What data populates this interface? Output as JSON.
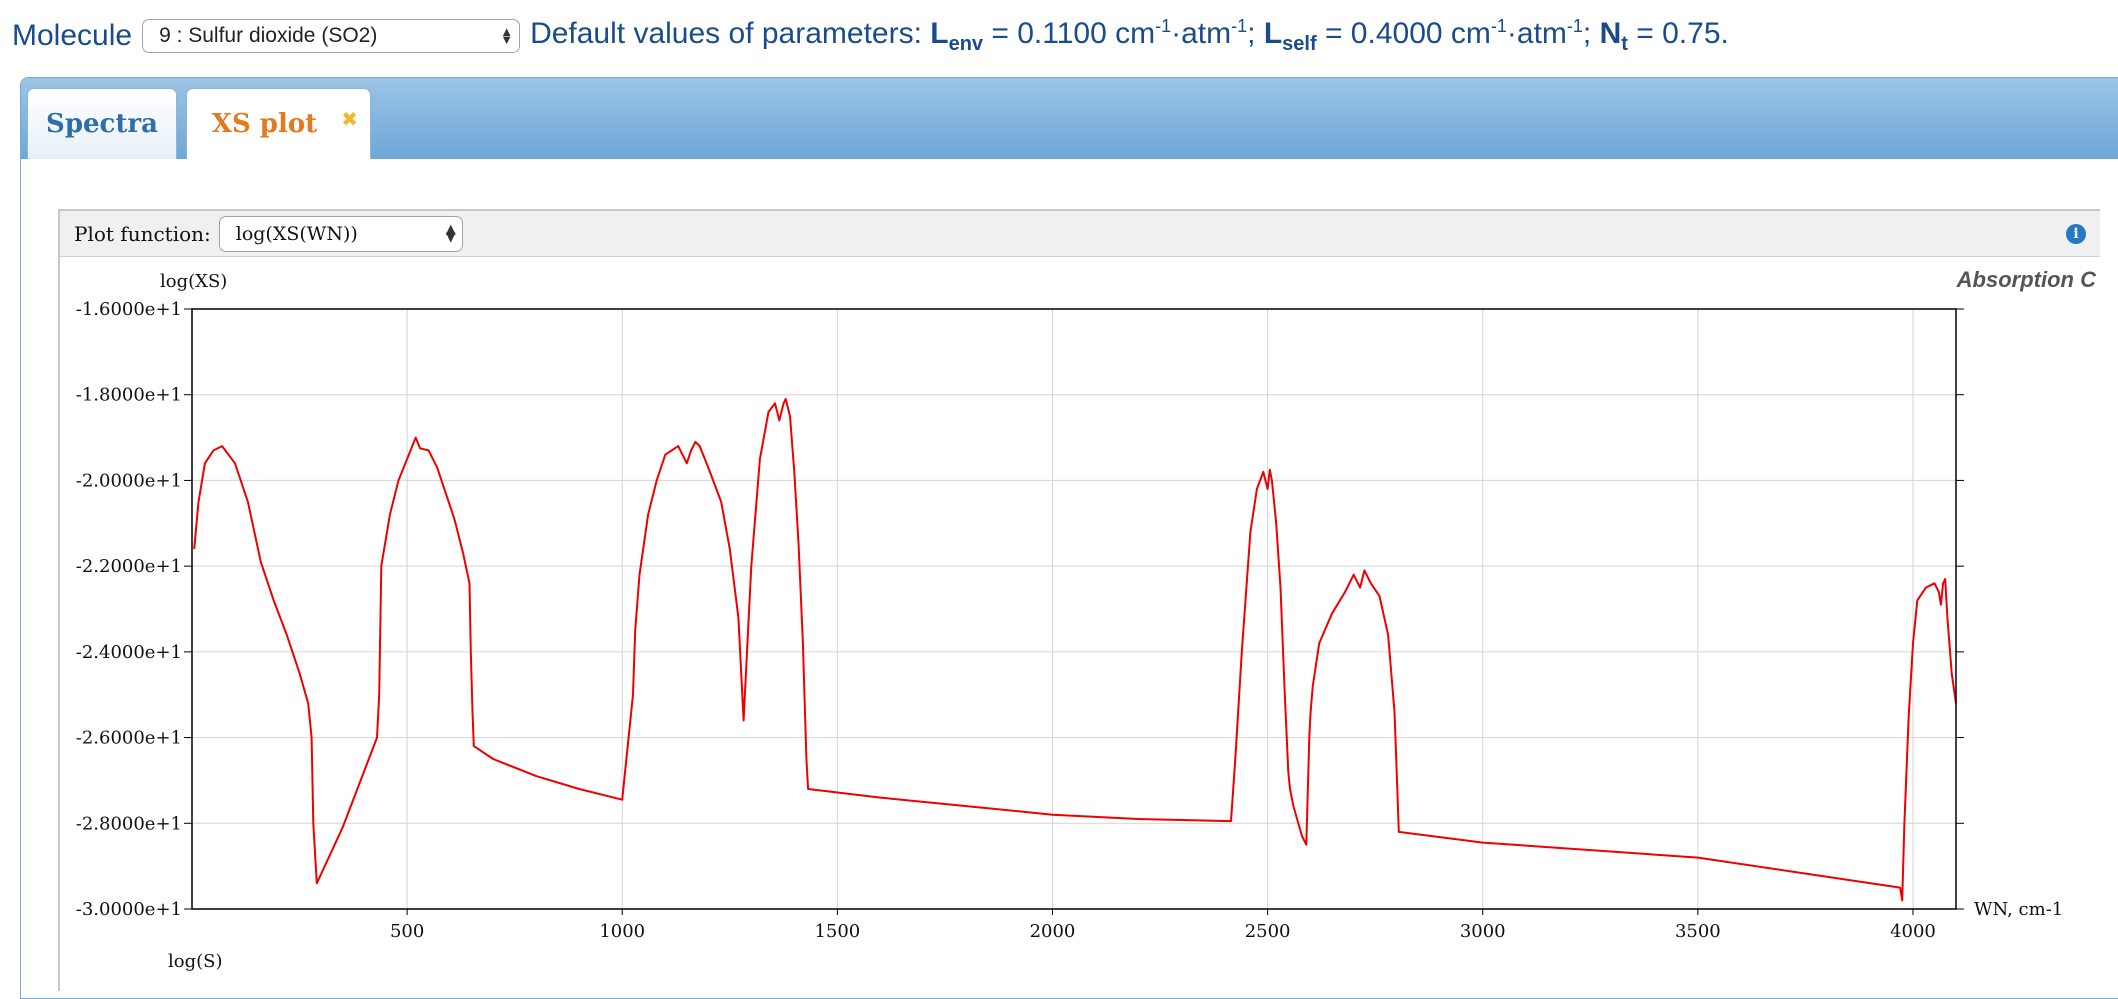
{
  "molecule": {
    "label": "Molecule",
    "selected": "9 : Sulfur dioxide (SO2)"
  },
  "params": {
    "prefix": "Default values of parameters: ",
    "l_env_symbol": "L",
    "l_env_sub": "env",
    "l_env_value": " = 0.1100 cm",
    "l_env_exp1": "-1",
    "l_env_unit2": "·atm",
    "l_env_exp2": "-1",
    "l_env_end": "; ",
    "l_self_symbol": "L",
    "l_self_sub": "self",
    "l_self_value": " = 0.4000 cm",
    "l_self_exp1": "-1",
    "l_self_unit2": "·atm",
    "l_self_exp2": "-1",
    "l_self_end": "; ",
    "nt_symbol": "N",
    "nt_sub": "t",
    "nt_value": " = 0.75."
  },
  "tabs": {
    "spectra": "Spectra",
    "xs_plot": "XS plot",
    "close_glyph": "✖"
  },
  "plot_toolbar": {
    "label": "Plot function:",
    "selected": "log(XS(WN))",
    "info_glyph": "i"
  },
  "chart_data": {
    "type": "line",
    "title": "Absorption C",
    "ylabel": "log(XS)",
    "xlabel": "WN, cm-1",
    "next_panel_label": "log(S)",
    "xlim": [
      0,
      4100
    ],
    "ylim": [
      -30,
      -16
    ],
    "x_ticks": [
      500,
      1000,
      1500,
      2000,
      2500,
      3000,
      3500,
      4000
    ],
    "x_tick_labels": [
      "500",
      "1000",
      "1500",
      "2000",
      "2500",
      "3000",
      "3500",
      "4000"
    ],
    "y_ticks": [
      -16,
      -18,
      -20,
      -22,
      -24,
      -26,
      -28,
      -30
    ],
    "y_tick_labels": [
      "-1.6000e+1",
      "-1.8000e+1",
      "-2.0000e+1",
      "-2.2000e+1",
      "-2.4000e+1",
      "-2.6000e+1",
      "-2.8000e+1",
      "-3.0000e+1"
    ],
    "grid": true,
    "series": [
      {
        "color": "#ee0000",
        "x": [
          5,
          15,
          30,
          50,
          70,
          100,
          130,
          160,
          190,
          220,
          250,
          270,
          278,
          282,
          290,
          350,
          430,
          435,
          440,
          460,
          480,
          500,
          520,
          530,
          550,
          570,
          590,
          610,
          630,
          645,
          648,
          652,
          655,
          700,
          800,
          900,
          1000,
          1025,
          1030,
          1040,
          1060,
          1080,
          1100,
          1130,
          1150,
          1160,
          1170,
          1180,
          1200,
          1230,
          1250,
          1270,
          1282,
          1290,
          1300,
          1320,
          1340,
          1355,
          1365,
          1375,
          1380,
          1390,
          1400,
          1410,
          1420,
          1428,
          1432,
          1600,
          1800,
          2000,
          2200,
          2415,
          2425,
          2440,
          2460,
          2475,
          2490,
          2500,
          2505,
          2510,
          2520,
          2530,
          2540,
          2548,
          2552,
          2560,
          2580,
          2590,
          2597,
          2600,
          2605,
          2620,
          2650,
          2680,
          2700,
          2715,
          2725,
          2740,
          2760,
          2780,
          2795,
          2800,
          2805,
          3000,
          3500,
          3970,
          3975,
          3980,
          3990,
          4000,
          4010,
          4030,
          4050,
          4060,
          4065,
          4070,
          4075,
          4080,
          4090,
          4100
        ],
        "y": [
          -21.6,
          -20.5,
          -19.6,
          -19.3,
          -19.2,
          -19.6,
          -20.5,
          -21.9,
          -22.8,
          -23.6,
          -24.5,
          -25.2,
          -26.0,
          -28.0,
          -29.4,
          -28.1,
          -26.0,
          -25.0,
          -22.0,
          -20.8,
          -20.0,
          -19.5,
          -19.0,
          -19.25,
          -19.3,
          -19.7,
          -20.3,
          -20.9,
          -21.7,
          -22.4,
          -24.0,
          -25.4,
          -26.2,
          -26.5,
          -26.9,
          -27.2,
          -27.45,
          -25.0,
          -23.5,
          -22.2,
          -20.8,
          -20.0,
          -19.4,
          -19.2,
          -19.6,
          -19.3,
          -19.1,
          -19.2,
          -19.7,
          -20.5,
          -21.6,
          -23.2,
          -25.6,
          -24.0,
          -22.0,
          -19.5,
          -18.4,
          -18.2,
          -18.6,
          -18.2,
          -18.1,
          -18.5,
          -19.8,
          -21.5,
          -23.8,
          -26.5,
          -27.2,
          -27.4,
          -27.6,
          -27.8,
          -27.9,
          -27.95,
          -26.5,
          -24.0,
          -21.2,
          -20.2,
          -19.8,
          -20.2,
          -19.75,
          -20.0,
          -21.0,
          -22.5,
          -25.0,
          -26.8,
          -27.2,
          -27.6,
          -28.3,
          -28.5,
          -26.0,
          -25.4,
          -24.8,
          -23.8,
          -23.1,
          -22.6,
          -22.2,
          -22.5,
          -22.1,
          -22.4,
          -22.7,
          -23.6,
          -25.4,
          -26.8,
          -28.2,
          -28.45,
          -28.8,
          -29.5,
          -29.8,
          -28.0,
          -25.5,
          -23.8,
          -22.8,
          -22.5,
          -22.4,
          -22.6,
          -22.9,
          -22.4,
          -22.3,
          -23.2,
          -24.5,
          -25.2
        ]
      }
    ]
  }
}
